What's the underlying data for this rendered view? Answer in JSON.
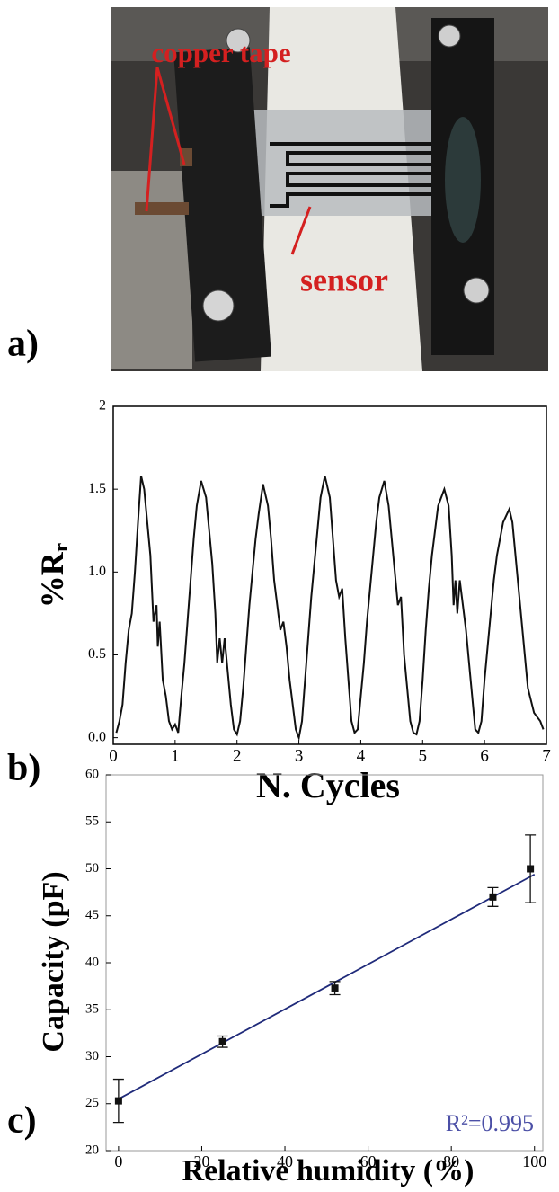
{
  "photo": {
    "labels": [
      "copper tape",
      "sensor"
    ]
  },
  "panel_labels": [
    "a)",
    "b)",
    "c)"
  ],
  "chart_data": [
    {
      "type": "line",
      "xlabel": "N. Cycles",
      "ylabel": "%R",
      "ylabel_sub": "r",
      "xlim": [
        0,
        7
      ],
      "ylim": [
        -0.04,
        2
      ],
      "xticks": [
        0,
        1,
        2,
        3,
        4,
        5,
        6,
        7
      ],
      "yticks": [
        {
          "value": 0,
          "label": "0.0"
        },
        0.5,
        {
          "value": 1,
          "label": "1.0"
        },
        1.5,
        2
      ],
      "x": [
        0.05,
        0.1,
        0.15,
        0.2,
        0.25,
        0.3,
        0.35,
        0.4,
        0.45,
        0.5,
        0.55,
        0.6,
        0.65,
        0.7,
        0.72,
        0.75,
        0.8,
        0.85,
        0.9,
        0.95,
        1.0,
        1.05,
        1.1,
        1.15,
        1.2,
        1.25,
        1.3,
        1.35,
        1.42,
        1.5,
        1.55,
        1.6,
        1.65,
        1.68,
        1.72,
        1.76,
        1.8,
        1.85,
        1.9,
        1.95,
        2.0,
        2.05,
        2.1,
        2.15,
        2.2,
        2.25,
        2.3,
        2.35,
        2.42,
        2.5,
        2.55,
        2.6,
        2.65,
        2.7,
        2.75,
        2.8,
        2.85,
        2.9,
        2.95,
        3.0,
        3.05,
        3.1,
        3.15,
        3.2,
        3.25,
        3.3,
        3.35,
        3.42,
        3.5,
        3.55,
        3.6,
        3.65,
        3.7,
        3.75,
        3.8,
        3.85,
        3.9,
        3.95,
        4.0,
        4.05,
        4.1,
        4.15,
        4.2,
        4.25,
        4.3,
        4.38,
        4.45,
        4.5,
        4.55,
        4.6,
        4.65,
        4.7,
        4.75,
        4.8,
        4.85,
        4.9,
        4.95,
        5.0,
        5.05,
        5.1,
        5.15,
        5.2,
        5.25,
        5.35,
        5.42,
        5.47,
        5.5,
        5.53,
        5.56,
        5.6,
        5.65,
        5.7,
        5.75,
        5.8,
        5.85,
        5.9,
        5.95,
        6.0,
        6.05,
        6.1,
        6.15,
        6.2,
        6.25,
        6.3,
        6.4,
        6.45,
        6.5,
        6.55,
        6.6,
        6.65,
        6.7,
        6.8,
        6.9,
        6.95
      ],
      "series": [
        {
          "color": "#111111",
          "values": [
            0.03,
            0.1,
            0.2,
            0.45,
            0.65,
            0.75,
            1.0,
            1.3,
            1.58,
            1.5,
            1.3,
            1.1,
            0.7,
            0.8,
            0.55,
            0.7,
            0.35,
            0.25,
            0.1,
            0.05,
            0.08,
            0.03,
            0.25,
            0.45,
            0.7,
            0.95,
            1.2,
            1.4,
            1.55,
            1.45,
            1.25,
            1.05,
            0.75,
            0.45,
            0.6,
            0.45,
            0.6,
            0.4,
            0.2,
            0.05,
            0.02,
            0.1,
            0.3,
            0.55,
            0.8,
            1.0,
            1.2,
            1.35,
            1.53,
            1.4,
            1.2,
            0.95,
            0.8,
            0.65,
            0.7,
            0.55,
            0.35,
            0.2,
            0.05,
            0.0,
            0.1,
            0.35,
            0.6,
            0.85,
            1.05,
            1.25,
            1.45,
            1.58,
            1.45,
            1.2,
            0.95,
            0.85,
            0.9,
            0.6,
            0.35,
            0.1,
            0.03,
            0.05,
            0.25,
            0.45,
            0.7,
            0.9,
            1.1,
            1.3,
            1.45,
            1.55,
            1.4,
            1.2,
            1.0,
            0.8,
            0.85,
            0.5,
            0.3,
            0.1,
            0.03,
            0.02,
            0.1,
            0.35,
            0.65,
            0.9,
            1.1,
            1.25,
            1.4,
            1.5,
            1.4,
            1.1,
            0.8,
            0.95,
            0.75,
            0.95,
            0.8,
            0.65,
            0.45,
            0.25,
            0.05,
            0.03,
            0.1,
            0.35,
            0.55,
            0.75,
            0.95,
            1.1,
            1.2,
            1.3,
            1.38,
            1.3,
            1.1,
            0.9,
            0.7,
            0.5,
            0.3,
            0.15,
            0.1,
            0.05
          ]
        }
      ]
    },
    {
      "type": "scatter",
      "xlabel": "Relative humidity (%)",
      "ylabel": "Capacity (pF)",
      "annotation": "R²=0.995",
      "xlim": [
        -3,
        102
      ],
      "ylim": [
        20,
        60
      ],
      "xticks": [
        0,
        20,
        40,
        60,
        80,
        100
      ],
      "yticks": [
        20,
        25,
        30,
        35,
        40,
        45,
        50,
        55,
        60
      ],
      "series": [
        {
          "color": "#111111",
          "x": [
            0,
            25,
            52,
            90,
            99
          ],
          "values": [
            25.3,
            31.6,
            37.3,
            47,
            50
          ],
          "errors": [
            2.3,
            0.6,
            0.7,
            1,
            3.6
          ]
        }
      ],
      "fit": {
        "color": "#1f2a7a",
        "x": [
          0,
          100
        ],
        "values": [
          25.5,
          49.4
        ]
      }
    }
  ]
}
